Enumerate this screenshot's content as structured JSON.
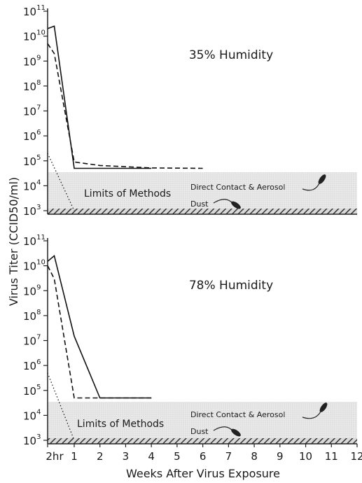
{
  "chart_data": [
    {
      "type": "line",
      "title": "35% Humidity",
      "y_scale": "log",
      "ylim": [
        1000,
        100000000000
      ],
      "xlim": [
        0,
        12
      ],
      "y_ticks": [
        {
          "base": "10",
          "exp": "11"
        },
        {
          "base": "10",
          "exp": "10"
        },
        {
          "base": "10",
          "exp": "9"
        },
        {
          "base": "10",
          "exp": "8"
        },
        {
          "base": "10",
          "exp": "7"
        },
        {
          "base": "10",
          "exp": "6"
        },
        {
          "base": "10",
          "exp": "5"
        },
        {
          "base": "10",
          "exp": "4"
        },
        {
          "base": "10",
          "exp": "3"
        }
      ],
      "series": [
        {
          "style": "solid",
          "x": [
            0,
            0.25,
            1,
            4
          ],
          "y": [
            20000000000,
            25000000000,
            50000,
            50000
          ]
        },
        {
          "style": "dashed",
          "x": [
            0,
            0.25,
            1,
            2,
            4,
            6
          ],
          "y": [
            5000000000,
            2000000000,
            90000,
            65000,
            52000,
            50000
          ]
        },
        {
          "style": "dotted",
          "x": [
            0,
            1
          ],
          "y": [
            200000,
            1000
          ]
        }
      ],
      "detection_limit": {
        "band": [
          1000,
          45000
        ],
        "label": "Limits of Methods",
        "annotations": [
          "Direct Contact & Aerosol",
          "Dust"
        ]
      }
    },
    {
      "type": "line",
      "title": "78% Humidity",
      "y_scale": "log",
      "ylim": [
        1000,
        100000000000
      ],
      "xlim": [
        0,
        12
      ],
      "y_ticks": [
        {
          "base": "10",
          "exp": "11"
        },
        {
          "base": "10",
          "exp": "10"
        },
        {
          "base": "10",
          "exp": "9"
        },
        {
          "base": "10",
          "exp": "8"
        },
        {
          "base": "10",
          "exp": "7"
        },
        {
          "base": "10",
          "exp": "6"
        },
        {
          "base": "10",
          "exp": "5"
        },
        {
          "base": "10",
          "exp": "4"
        },
        {
          "base": "10",
          "exp": "3"
        }
      ],
      "series": [
        {
          "style": "solid",
          "x": [
            0,
            0.25,
            1,
            2,
            4
          ],
          "y": [
            15000000000,
            25000000000,
            15000000,
            50000,
            50000
          ]
        },
        {
          "style": "dashed",
          "x": [
            0,
            0.25,
            1,
            2,
            4
          ],
          "y": [
            10000000000,
            3000000000,
            50000,
            50000,
            50000
          ]
        },
        {
          "style": "dotted",
          "x": [
            0,
            1
          ],
          "y": [
            500000,
            1000
          ]
        }
      ],
      "detection_limit": {
        "band": [
          1000,
          45000
        ],
        "label": "Limits of Methods",
        "annotations": [
          "Direct Contact & Aerosol",
          "Dust"
        ]
      },
      "x_tick_labels": [
        "2hr",
        "1",
        "2",
        "3",
        "4",
        "5",
        "6",
        "7",
        "8",
        "9",
        "10",
        "11",
        "12"
      ]
    }
  ],
  "ylabel": "Virus Titer (CCID50/ml)",
  "xlabel": "Weeks After Virus Exposure"
}
